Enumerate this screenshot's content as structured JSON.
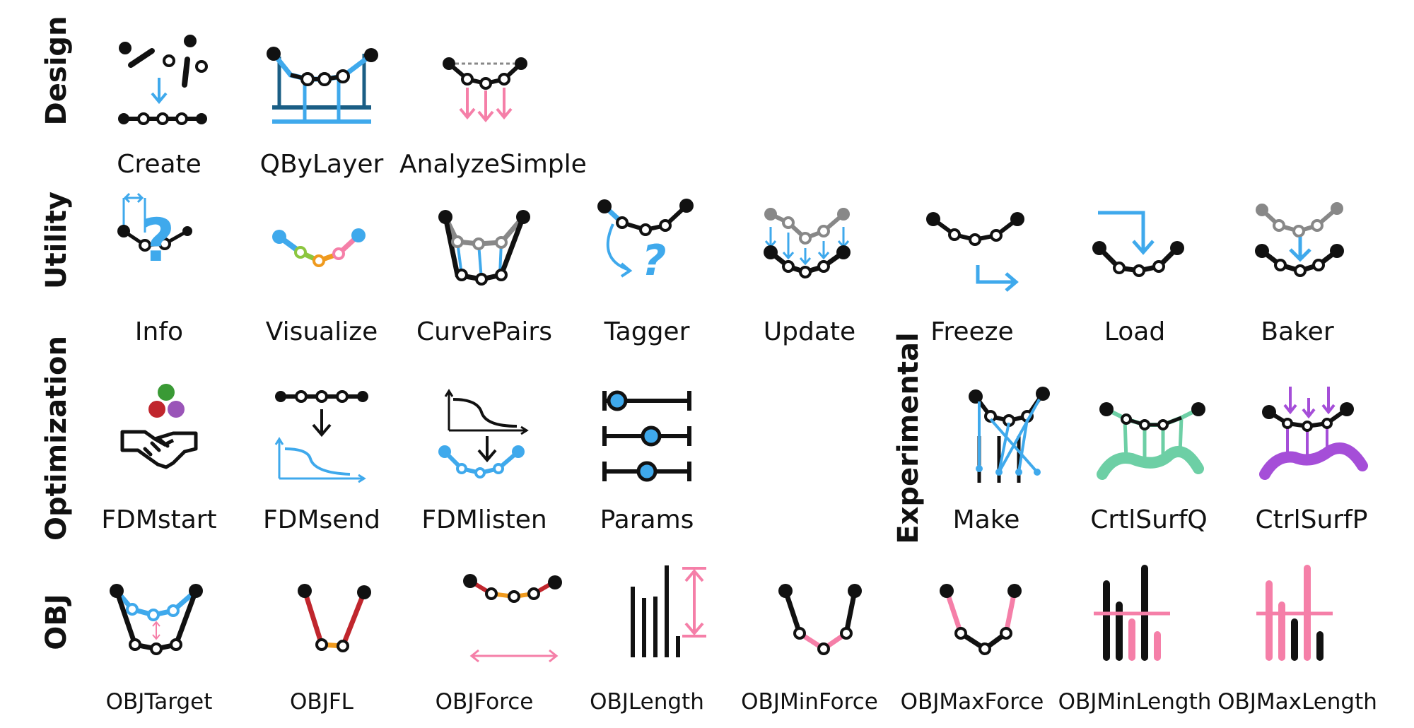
{
  "categories": {
    "design": "Design",
    "utility": "Utility",
    "optimization": "Optimization",
    "experimental": "Experimental",
    "obj": "OBJ"
  },
  "components": {
    "design": [
      "Create",
      "QByLayer",
      "AnalyzeSimple"
    ],
    "utility": [
      "Info",
      "Visualize",
      "CurvePairs",
      "Tagger",
      "Update",
      "Freeze",
      "Load",
      "Baker"
    ],
    "optimization": [
      "FDMstart",
      "FDMsend",
      "FDMlisten",
      "Params"
    ],
    "experimental": [
      "Make",
      "CrtlSurfQ",
      "CtrlSurfP"
    ],
    "obj": [
      "OBJTarget",
      "OBJFL",
      "OBJForce",
      "OBJLength",
      "OBJMinForce",
      "OBJMaxForce",
      "OBJMinLength",
      "OBJMaxLength"
    ]
  },
  "colors": {
    "black": "#111111",
    "blue": "#3fa9ec",
    "dark_blue": "#1a5e85",
    "gray": "#888888",
    "pink": "#f57fa8",
    "red": "#c0262d",
    "orange": "#ef9a1e",
    "green": "#3a9a35",
    "purple": "#9a55b8",
    "teal": "#6dcfa5",
    "violet": "#a54ed8",
    "lime": "#8cc63f"
  }
}
